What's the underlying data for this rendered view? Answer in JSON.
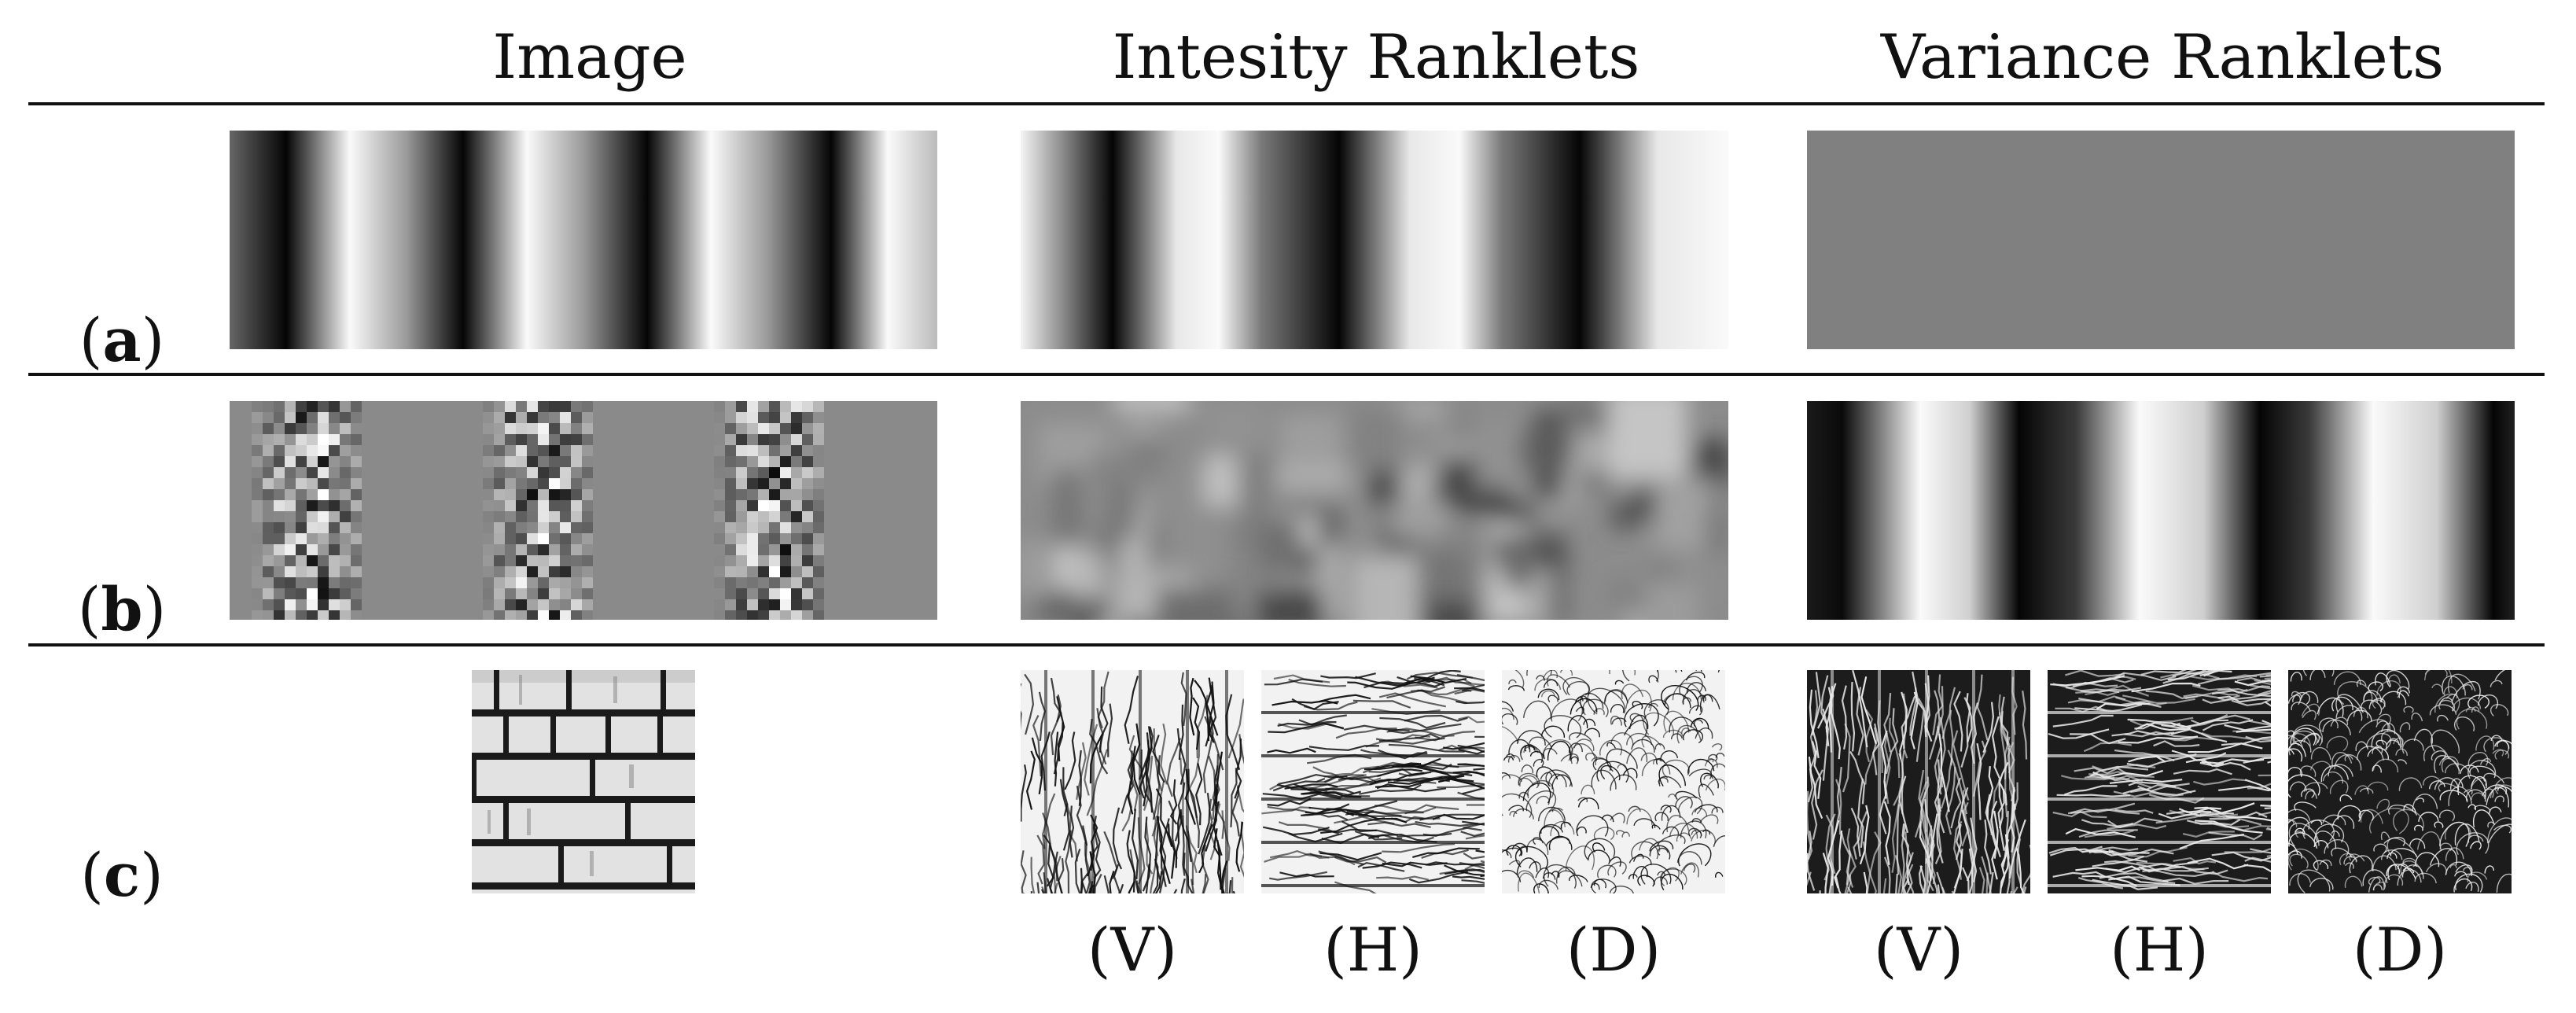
{
  "headers": {
    "image": "Image",
    "intensity": "Intesity Ranklets",
    "variance": "Variance Ranklets"
  },
  "rows": {
    "a": {
      "open": "(",
      "letter": "a",
      "close": ")"
    },
    "b": {
      "open": "(",
      "letter": "b",
      "close": ")"
    },
    "c": {
      "open": "(",
      "letter": "c",
      "close": ")"
    }
  },
  "sub_labels": {
    "intensity": [
      "(V)",
      "(H)",
      "(D)"
    ],
    "variance": [
      "(V)",
      "(H)",
      "(D)"
    ]
  },
  "colors": {
    "text": "#111111",
    "uniform_gray": "#808080",
    "mortar": "#1a1a1a",
    "brick": "#e0e0e0"
  }
}
